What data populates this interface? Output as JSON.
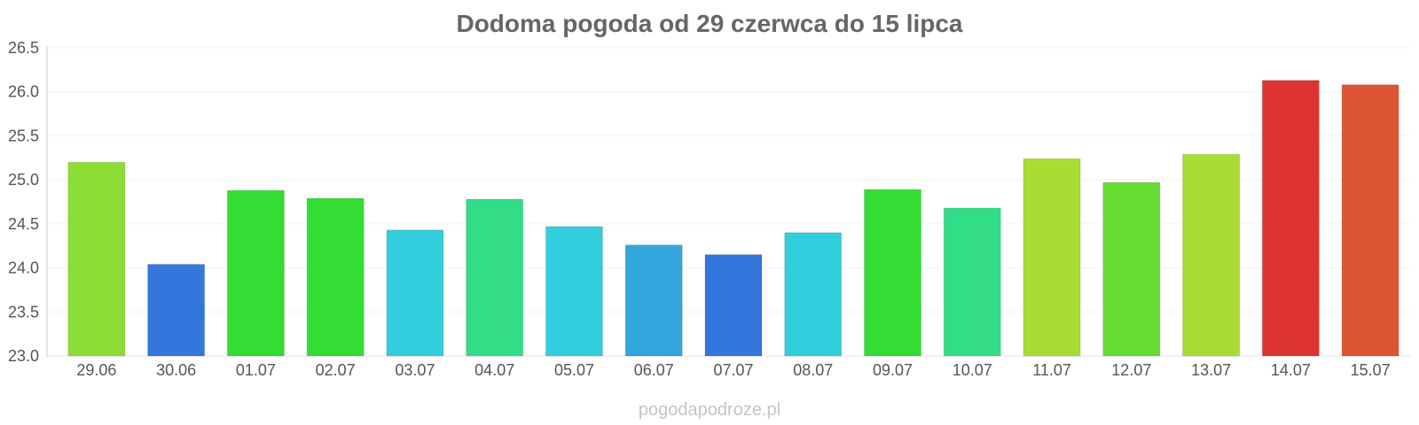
{
  "chart_data": {
    "type": "bar",
    "title": "Dodoma pogoda od 29 czerwca do 15 lipca",
    "categories": [
      "29.06",
      "30.06",
      "01.07",
      "02.07",
      "03.07",
      "04.07",
      "05.07",
      "06.07",
      "07.07",
      "08.07",
      "09.07",
      "10.07",
      "11.07",
      "12.07",
      "13.07",
      "14.07",
      "15.07"
    ],
    "values": [
      25.2,
      24.04,
      24.88,
      24.79,
      24.43,
      24.78,
      24.47,
      24.26,
      24.15,
      24.4,
      24.89,
      24.68,
      25.24,
      24.97,
      25.29,
      26.13,
      26.08
    ],
    "colors": [
      "#8cdd34",
      "#3377dd",
      "#33dd33",
      "#33dd33",
      "#33cedd",
      "#33dd88",
      "#33cedd",
      "#33a6dd",
      "#3377dd",
      "#33cedd",
      "#33dd33",
      "#33dd88",
      "#aadd33",
      "#66dd33",
      "#aadd33",
      "#dd3333",
      "#dd5533"
    ],
    "ylim": [
      23.0,
      26.5
    ],
    "yticks": [
      "23.0",
      "23.5",
      "24.0",
      "24.5",
      "25.0",
      "25.5",
      "26.0",
      "26.5"
    ],
    "xlabel": "",
    "ylabel": "",
    "grid": true,
    "legend": "none"
  },
  "watermark": "pogodapodroze.pl"
}
